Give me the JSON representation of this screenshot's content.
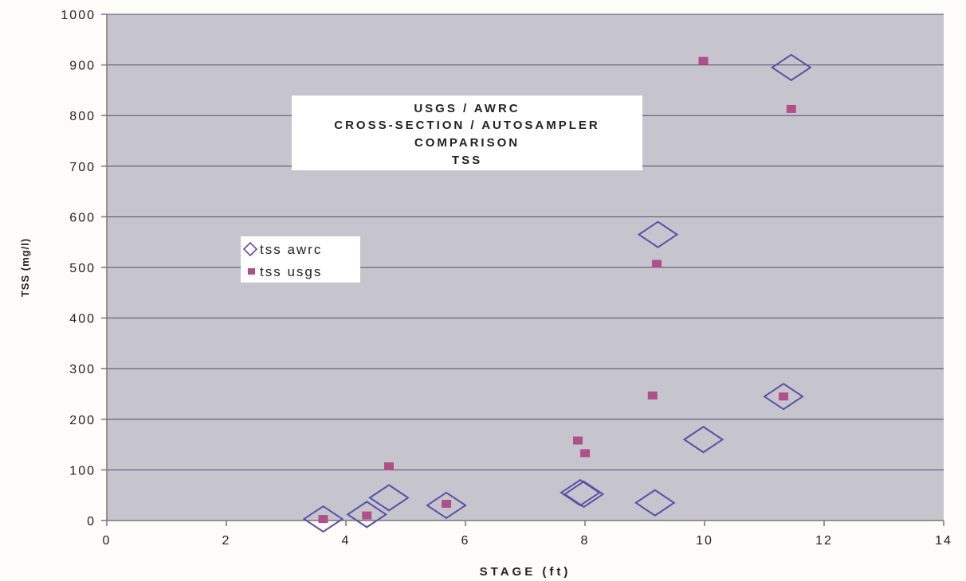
{
  "chart_data": {
    "type": "scatter",
    "title_lines": [
      "USGS / AWRC",
      "CROSS-SECTION / AUTOSAMPLER",
      "COMPARISON",
      "TSS"
    ],
    "xlabel": "STAGE (ft)",
    "ylabel": "TSS (mg/l)",
    "xlim": [
      0,
      14
    ],
    "ylim": [
      0,
      1000
    ],
    "x_ticks": [
      0,
      2,
      4,
      6,
      8,
      10,
      12,
      14
    ],
    "y_ticks": [
      0,
      100,
      200,
      300,
      400,
      500,
      600,
      700,
      800,
      900,
      1000
    ],
    "grid": "horizontal",
    "legend_position": "left-middle",
    "plot_background": "#c6c5cd",
    "series": [
      {
        "name": "tss awrc",
        "marker": "hollow-diamond",
        "color": "#5a4fa6",
        "points": [
          [
            3.62,
            3
          ],
          [
            4.35,
            12
          ],
          [
            4.72,
            45
          ],
          [
            5.68,
            30
          ],
          [
            7.92,
            55
          ],
          [
            7.98,
            52
          ],
          [
            9.17,
            35
          ],
          [
            9.22,
            565
          ],
          [
            9.98,
            160
          ],
          [
            11.32,
            245
          ],
          [
            11.45,
            895
          ]
        ]
      },
      {
        "name": "tss usgs",
        "marker": "filled-square",
        "color": "#b0508a",
        "points": [
          [
            3.62,
            3
          ],
          [
            4.35,
            10
          ],
          [
            4.72,
            107
          ],
          [
            5.68,
            33
          ],
          [
            7.88,
            158
          ],
          [
            8.0,
            133
          ],
          [
            9.13,
            247
          ],
          [
            9.2,
            507
          ],
          [
            9.98,
            908
          ],
          [
            11.32,
            245
          ],
          [
            11.45,
            813
          ]
        ]
      }
    ]
  }
}
